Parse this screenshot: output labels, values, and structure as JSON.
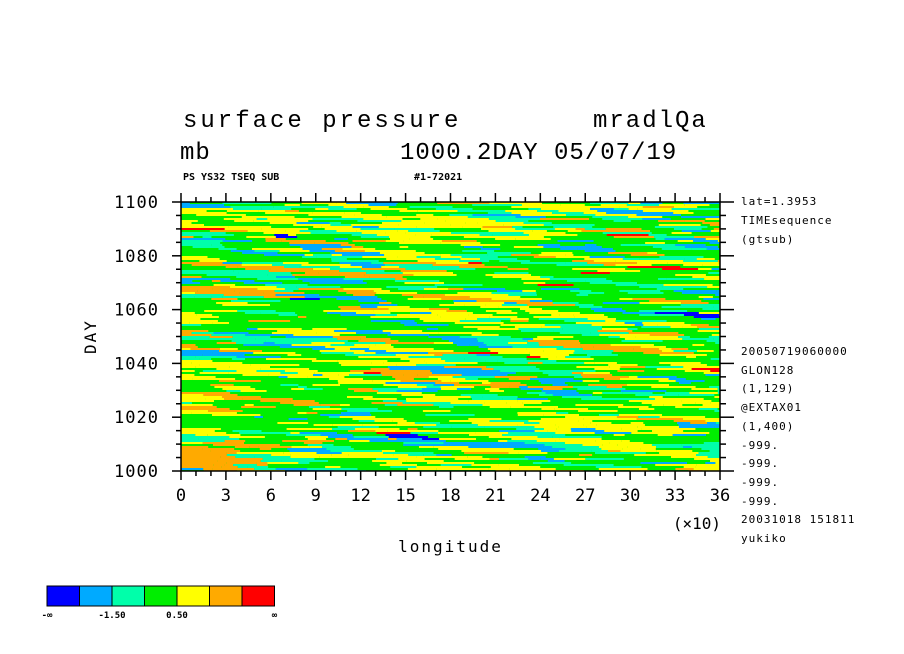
{
  "header": {
    "title": "surface pressure",
    "model": "mradlQa",
    "units": "mb",
    "info": "1000.2DAY 05/07/19",
    "tag_left": "PS YS32 TSEQ SUB",
    "tag_right": "#1-72021"
  },
  "side_info_top": [
    "lat=1.3953",
    "TIMEsequence",
    "(gtsub)"
  ],
  "side_info_bottom": [
    "20050719060000",
    "GLON128",
    "(1,129)",
    "@EXTAX01",
    "(1,400)",
    "-999.",
    "-999.",
    "-999.",
    "-999.",
    "20031018 151811",
    "yukiko"
  ],
  "colors": {
    "palette": [
      "#0000ff",
      "#00aaff",
      "#00ffaa",
      "#00ee00",
      "#ffff00",
      "#ffaa00",
      "#ff0000"
    ]
  },
  "colorbar": {
    "labels": [
      "-∞",
      "-1.50",
      "0.50",
      "∞"
    ]
  },
  "chart_data": {
    "type": "heatmap",
    "xlabel": "longitude",
    "x_multiplier": "(×10)",
    "ylabel": "DAY",
    "xlim": [
      0,
      36
    ],
    "ylim": [
      1000,
      1100
    ],
    "x_ticks": [
      0,
      3,
      6,
      9,
      12,
      15,
      18,
      21,
      24,
      27,
      30,
      33,
      36
    ],
    "y_ticks": [
      1000,
      1020,
      1040,
      1060,
      1080,
      1100
    ],
    "levels": [
      -1.5,
      0.5
    ],
    "field_note": "noisy time-longitude field dominated by green/yellow with scattered cyan, orange, red and blue streaks"
  }
}
